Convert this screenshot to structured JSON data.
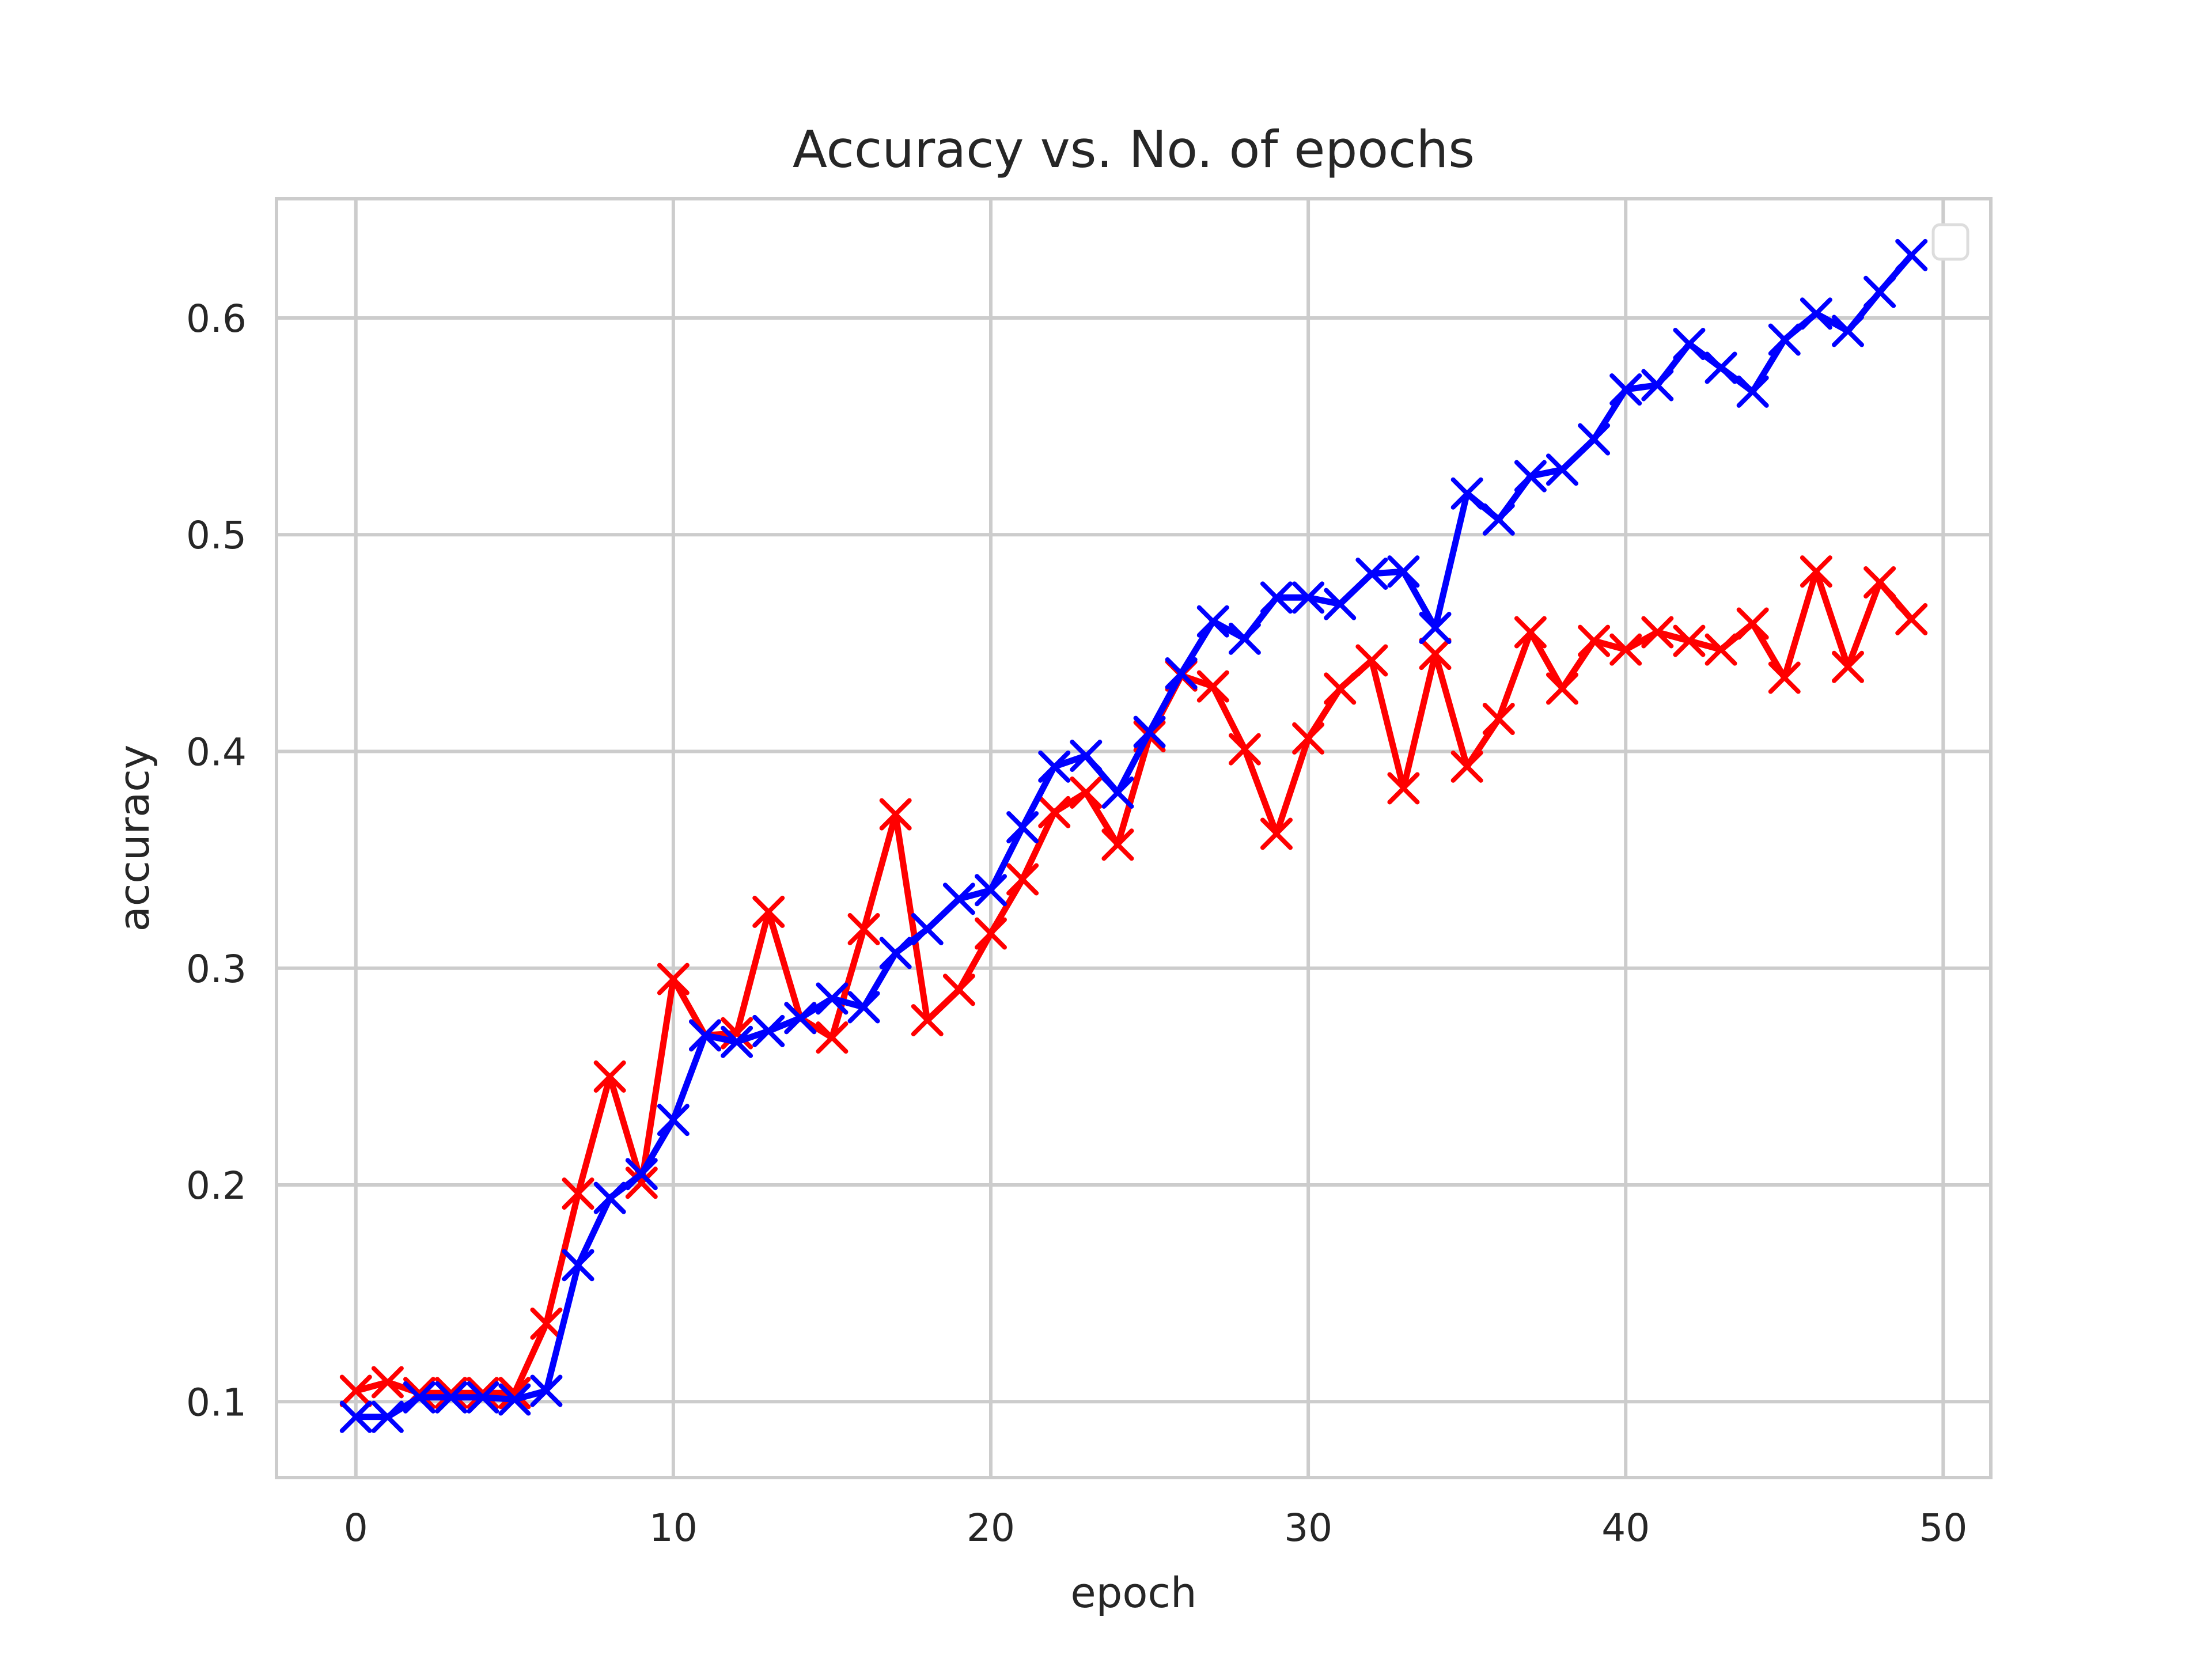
{
  "chart_data": {
    "type": "line",
    "title": "Accuracy vs. No. of epochs",
    "xlabel": "epoch",
    "ylabel": "accuracy",
    "xlim": [
      -2.5,
      51.5
    ],
    "ylim": [
      0.065,
      0.655
    ],
    "xticks": [
      0,
      10,
      20,
      30,
      40,
      50
    ],
    "yticks": [
      0.1,
      0.2,
      0.3,
      0.4,
      0.5,
      0.6
    ],
    "grid": true,
    "legend": "upper right",
    "x": [
      0,
      1,
      2,
      3,
      4,
      5,
      6,
      7,
      8,
      9,
      10,
      11,
      12,
      13,
      14,
      15,
      16,
      17,
      18,
      19,
      20,
      21,
      22,
      23,
      24,
      25,
      26,
      27,
      28,
      29,
      30,
      31,
      32,
      33,
      34,
      35,
      36,
      37,
      38,
      39,
      40,
      41,
      42,
      43,
      44,
      45,
      46,
      47,
      48,
      49
    ],
    "series": [
      {
        "color": "#0000ff",
        "marker": "x",
        "values": [
          0.093,
          0.093,
          0.102,
          0.102,
          0.102,
          0.101,
          0.105,
          0.163,
          0.194,
          0.205,
          0.23,
          0.269,
          0.266,
          0.271,
          0.277,
          0.286,
          0.282,
          0.307,
          0.318,
          0.332,
          0.336,
          0.365,
          0.393,
          0.398,
          0.381,
          0.409,
          0.436,
          0.46,
          0.452,
          0.471,
          0.471,
          0.468,
          0.482,
          0.483,
          0.457,
          0.519,
          0.507,
          0.527,
          0.53,
          0.544,
          0.567,
          0.569,
          0.588,
          0.577,
          0.566,
          0.59,
          0.602,
          0.594,
          0.612,
          0.629
        ]
      },
      {
        "color": "#ff0000",
        "marker": "x",
        "values": [
          0.105,
          0.109,
          0.104,
          0.104,
          0.104,
          0.104,
          0.136,
          0.196,
          0.25,
          0.201,
          0.295,
          0.269,
          0.27,
          0.326,
          0.277,
          0.268,
          0.318,
          0.371,
          0.276,
          0.29,
          0.316,
          0.341,
          0.372,
          0.381,
          0.357,
          0.407,
          0.435,
          0.43,
          0.401,
          0.362,
          0.406,
          0.429,
          0.442,
          0.383,
          0.445,
          0.393,
          0.415,
          0.455,
          0.429,
          0.451,
          0.447,
          0.455,
          0.451,
          0.447,
          0.459,
          0.434,
          0.483,
          0.439,
          0.478,
          0.461
        ]
      }
    ]
  },
  "colors": {
    "background": "#ffffff",
    "grid": "#cccccc",
    "text": "#262626",
    "series_blue": "#0000ff",
    "series_red": "#ff0000"
  }
}
